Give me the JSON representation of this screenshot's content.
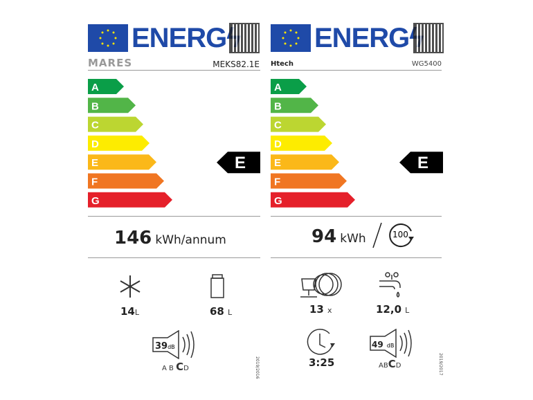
{
  "scale_letters": [
    "A",
    "B",
    "C",
    "D",
    "E",
    "F",
    "G"
  ],
  "scale_colors": [
    "#0a9e48",
    "#52b548",
    "#bcd631",
    "#fdec00",
    "#fbb819",
    "#f07622",
    "#e5202a"
  ],
  "header_text": "ENERG",
  "left": {
    "brand": "MARES",
    "model": "MEKS82.1E",
    "class": "E",
    "energy_value": "146",
    "energy_unit": "kWh/annum",
    "freezer_value": "14",
    "freezer_unit": "L",
    "fridge_value": "68",
    "fridge_unit": "L",
    "noise_value": "39",
    "noise_unit": "dB",
    "noise_classes": [
      "A",
      "B",
      "C",
      "D"
    ],
    "noise_class": "C",
    "regulation": "2019/2016"
  },
  "right": {
    "brand": "Htech",
    "model": "WG5400",
    "class": "E",
    "energy_value": "94",
    "energy_unit": "kWh",
    "cycles": "100",
    "place_settings_value": "13",
    "place_settings_unit": "x",
    "water_value": "12,0",
    "water_unit": "L",
    "duration": "3:25",
    "noise_value": "49",
    "noise_unit": "dB",
    "noise_classes": [
      "A",
      "B",
      "C",
      "D"
    ],
    "noise_class": "C",
    "regulation": "2019/2017"
  }
}
